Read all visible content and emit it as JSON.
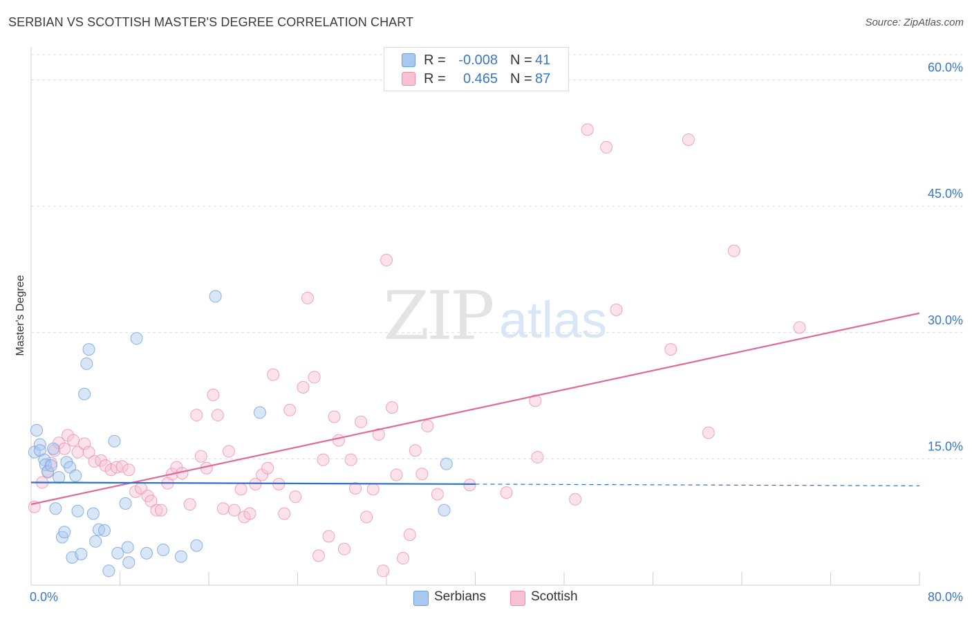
{
  "title": "SERBIAN VS SCOTTISH MASTER'S DEGREE CORRELATION CHART",
  "source": "Source: ZipAtlas.com",
  "watermark": {
    "zip": "ZIP",
    "atlas": "atlas"
  },
  "legend_top": [
    {
      "r_label": "R =",
      "r_value": "-0.008",
      "n_label": "N =",
      "n_value": "41",
      "color": "#a9c8f0",
      "border": "#6fa0de"
    },
    {
      "r_label": "R =",
      "r_value": "0.465",
      "n_label": "N =",
      "n_value": "87",
      "color": "#f8c2d3",
      "border": "#ec8fae"
    }
  ],
  "legend_bottom": [
    {
      "label": "Serbians",
      "color": "#a9c8f0",
      "border": "#6fa0de"
    },
    {
      "label": "Scottish",
      "color": "#f8c2d3",
      "border": "#ec8fae"
    }
  ],
  "chart_data": {
    "type": "scatter",
    "title": "SERBIAN VS SCOTTISH MASTER'S DEGREE CORRELATION CHART",
    "xlabel": "",
    "ylabel": "Master's Degree",
    "xlim": [
      0,
      80
    ],
    "ylim": [
      0,
      63
    ],
    "x_tick_labels": [
      "0.0%",
      "80.0%"
    ],
    "y_ticks": [
      15,
      30,
      45,
      60
    ],
    "y_tick_labels": [
      "15.0%",
      "30.0%",
      "45.0%",
      "60.0%"
    ],
    "grid": true,
    "legend_position": "top-center",
    "colors": {
      "serbians": "#6fa0de",
      "scottish": "#ec8fae",
      "serbians_line": "#2f6fcf",
      "scottish_line": "#e0699a",
      "tick_labels": "#3a76c7"
    },
    "series": [
      {
        "name": "Serbians",
        "r": -0.008,
        "n": 41,
        "trend": {
          "x": [
            0,
            40,
            80
          ],
          "y": [
            12.2,
            12.0,
            11.8
          ],
          "solid_until_x": 40
        },
        "points": [
          [
            0.3,
            15.8
          ],
          [
            0.5,
            18.4
          ],
          [
            0.8,
            16.7
          ],
          [
            0.8,
            16.0
          ],
          [
            1.2,
            14.9
          ],
          [
            1.3,
            14.3
          ],
          [
            1.5,
            13.5
          ],
          [
            1.8,
            14.2
          ],
          [
            2.0,
            16.2
          ],
          [
            2.2,
            9.1
          ],
          [
            2.5,
            12.8
          ],
          [
            2.8,
            5.7
          ],
          [
            3.0,
            6.3
          ],
          [
            3.2,
            14.6
          ],
          [
            3.5,
            14.0
          ],
          [
            3.7,
            3.3
          ],
          [
            4.0,
            13.0
          ],
          [
            4.2,
            8.8
          ],
          [
            4.5,
            3.7
          ],
          [
            4.8,
            22.7
          ],
          [
            5.0,
            26.3
          ],
          [
            5.2,
            28.0
          ],
          [
            5.6,
            8.5
          ],
          [
            5.8,
            5.2
          ],
          [
            6.1,
            6.6
          ],
          [
            6.6,
            6.5
          ],
          [
            7.0,
            1.7
          ],
          [
            7.5,
            17.1
          ],
          [
            7.8,
            3.8
          ],
          [
            8.5,
            9.7
          ],
          [
            8.7,
            4.5
          ],
          [
            8.8,
            2.7
          ],
          [
            9.5,
            29.3
          ],
          [
            10.4,
            3.8
          ],
          [
            11.9,
            4.2
          ],
          [
            13.5,
            3.4
          ],
          [
            14.9,
            4.7
          ],
          [
            16.6,
            34.3
          ],
          [
            20.6,
            20.5
          ],
          [
            37.2,
            8.9
          ],
          [
            37.4,
            14.4
          ]
        ]
      },
      {
        "name": "Scottish",
        "r": 0.465,
        "n": 87,
        "trend": {
          "x": [
            0,
            80
          ],
          "y": [
            9.6,
            32.3
          ]
        },
        "points": [
          [
            0.3,
            9.3
          ],
          [
            1.0,
            12.2
          ],
          [
            1.5,
            13.4
          ],
          [
            1.8,
            14.5
          ],
          [
            2.1,
            16.0
          ],
          [
            2.5,
            16.9
          ],
          [
            3.0,
            16.2
          ],
          [
            3.3,
            17.8
          ],
          [
            3.8,
            17.2
          ],
          [
            4.2,
            15.8
          ],
          [
            4.8,
            16.8
          ],
          [
            5.2,
            15.8
          ],
          [
            5.7,
            14.7
          ],
          [
            6.3,
            14.8
          ],
          [
            6.7,
            14.2
          ],
          [
            7.2,
            13.7
          ],
          [
            7.7,
            14.0
          ],
          [
            8.2,
            14.1
          ],
          [
            8.8,
            13.7
          ],
          [
            9.4,
            11.1
          ],
          [
            9.9,
            11.5
          ],
          [
            10.5,
            10.6
          ],
          [
            10.8,
            10.0
          ],
          [
            11.3,
            8.9
          ],
          [
            11.7,
            8.9
          ],
          [
            12.3,
            12.1
          ],
          [
            12.7,
            13.2
          ],
          [
            13.1,
            14.0
          ],
          [
            13.6,
            13.3
          ],
          [
            14.3,
            9.6
          ],
          [
            14.9,
            20.2
          ],
          [
            15.3,
            15.3
          ],
          [
            15.8,
            13.9
          ],
          [
            16.4,
            22.6
          ],
          [
            16.8,
            20.2
          ],
          [
            17.3,
            9.1
          ],
          [
            17.8,
            15.9
          ],
          [
            18.3,
            8.9
          ],
          [
            18.9,
            11.4
          ],
          [
            19.2,
            8.1
          ],
          [
            19.7,
            8.5
          ],
          [
            20.2,
            12.0
          ],
          [
            20.8,
            13.1
          ],
          [
            21.3,
            13.9
          ],
          [
            21.8,
            25.0
          ],
          [
            22.3,
            12.0
          ],
          [
            22.8,
            8.5
          ],
          [
            23.3,
            20.8
          ],
          [
            23.8,
            10.5
          ],
          [
            24.5,
            23.5
          ],
          [
            24.9,
            34.1
          ],
          [
            25.5,
            24.7
          ],
          [
            25.9,
            3.5
          ],
          [
            26.3,
            14.9
          ],
          [
            26.8,
            5.8
          ],
          [
            27.3,
            20.0
          ],
          [
            27.7,
            17.2
          ],
          [
            28.2,
            4.3
          ],
          [
            28.8,
            14.9
          ],
          [
            29.2,
            11.5
          ],
          [
            29.7,
            19.4
          ],
          [
            30.2,
            8.1
          ],
          [
            30.8,
            11.4
          ],
          [
            31.3,
            17.9
          ],
          [
            31.7,
            1.7
          ],
          [
            32.0,
            38.6
          ],
          [
            32.5,
            21.1
          ],
          [
            32.9,
            13.1
          ],
          [
            33.5,
            3.2
          ],
          [
            34.1,
            6.0
          ],
          [
            34.6,
            16.0
          ],
          [
            35.2,
            13.2
          ],
          [
            35.7,
            18.9
          ],
          [
            36.6,
            10.8
          ],
          [
            39.5,
            11.9
          ],
          [
            42.8,
            11.0
          ],
          [
            45.4,
            21.9
          ],
          [
            45.6,
            15.2
          ],
          [
            49.0,
            10.2
          ],
          [
            50.1,
            54.1
          ],
          [
            51.8,
            52.0
          ],
          [
            52.7,
            32.7
          ],
          [
            57.6,
            28.0
          ],
          [
            59.2,
            52.9
          ],
          [
            61.0,
            18.1
          ],
          [
            63.3,
            39.7
          ],
          [
            69.2,
            30.6
          ]
        ]
      }
    ]
  }
}
